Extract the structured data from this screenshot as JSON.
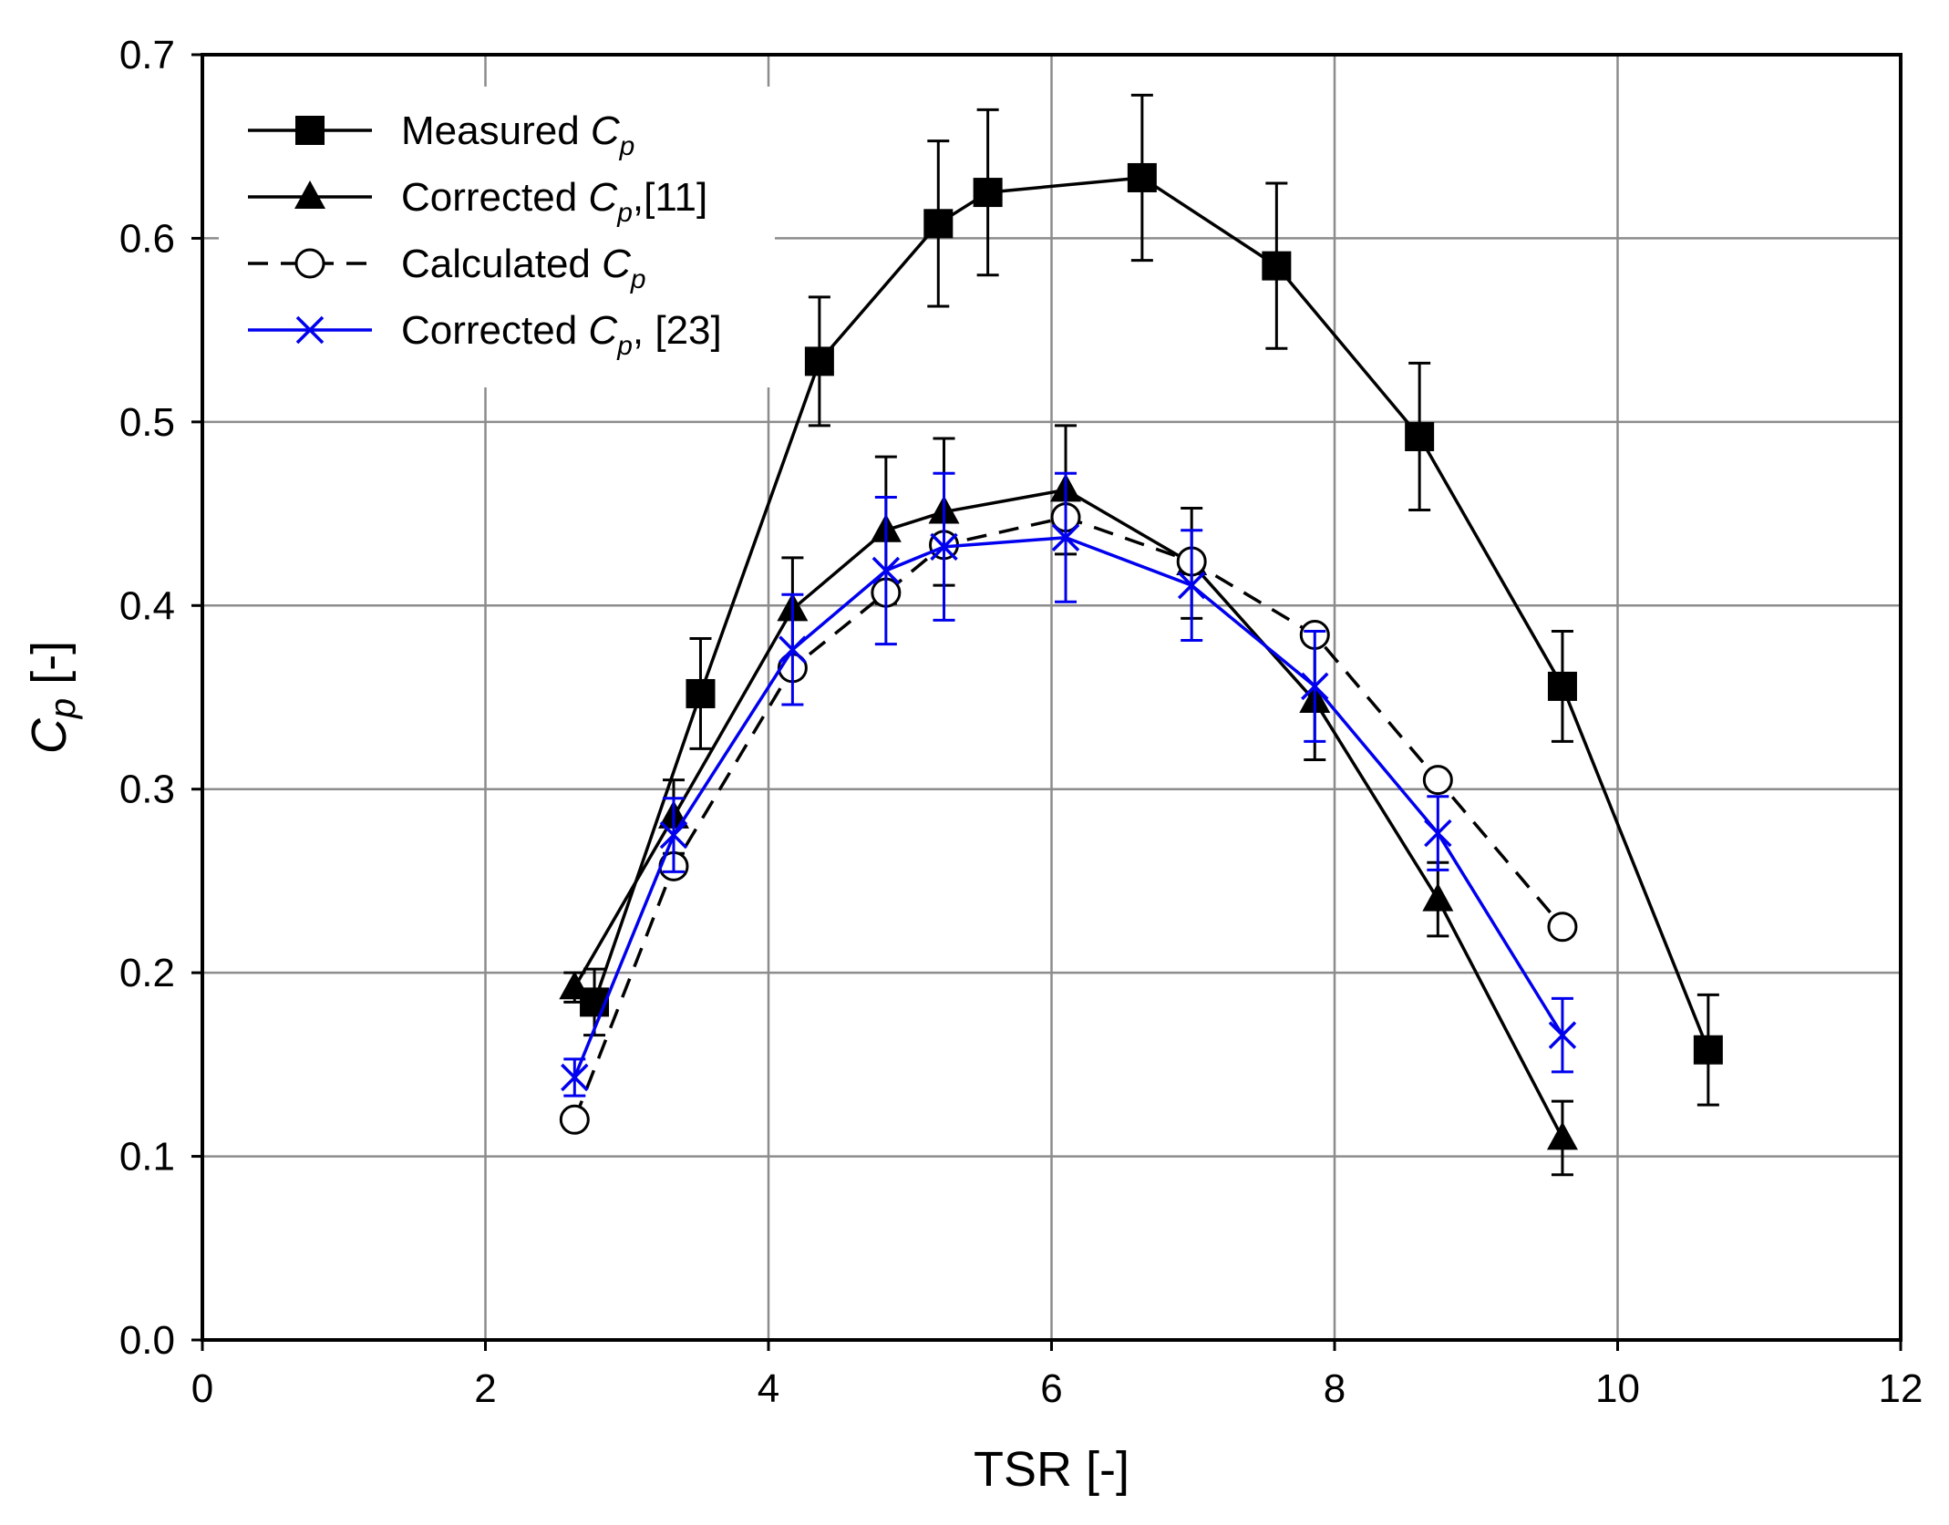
{
  "chart_data": {
    "type": "line",
    "title": "",
    "xlabel": "TSR [-]",
    "ylabel": "C",
    "ylabel_sub": "p",
    "ylabel_suffix": " [-]",
    "xlim": [
      0,
      12
    ],
    "ylim": [
      0,
      0.7
    ],
    "x_ticks": [
      0,
      2,
      4,
      6,
      8,
      10,
      12
    ],
    "x_tick_labels": [
      "0",
      "2",
      "4",
      "6",
      "8",
      "10",
      "12"
    ],
    "y_ticks": [
      0,
      0.1,
      0.2,
      0.3,
      0.4,
      0.5,
      0.6,
      0.7
    ],
    "y_tick_labels": [
      "0.0",
      "0.1",
      "0.2",
      "0.3",
      "0.4",
      "0.5",
      "0.6",
      "0.7"
    ],
    "grid": true,
    "legend_position": "top-left",
    "series": [
      {
        "name": "Measured Cp",
        "legend_prefix": "Measured C",
        "legend_sub": "p",
        "legend_suffix": "",
        "color": "#000000",
        "dash": "solid",
        "marker": "square",
        "x": [
          2.77,
          3.52,
          4.36,
          5.2,
          5.55,
          6.64,
          7.59,
          8.6,
          9.61,
          10.64
        ],
        "y": [
          0.184,
          0.352,
          0.533,
          0.608,
          0.625,
          0.633,
          0.585,
          0.492,
          0.356,
          0.158
        ],
        "err": [
          0.018,
          0.03,
          0.035,
          0.045,
          0.045,
          0.045,
          0.045,
          0.04,
          0.03,
          0.03
        ]
      },
      {
        "name": "Corrected Cp,[11]",
        "legend_prefix": "Corrected C",
        "legend_sub": "p",
        "legend_suffix": ",[11]",
        "color": "#000000",
        "dash": "solid",
        "marker": "triangle",
        "x": [
          2.63,
          3.33,
          4.17,
          4.83,
          5.24,
          6.1,
          6.99,
          7.86,
          8.73,
          9.61
        ],
        "y": [
          0.192,
          0.285,
          0.398,
          0.441,
          0.451,
          0.463,
          0.423,
          0.348,
          0.24,
          0.11
        ],
        "err": [
          0.008,
          0.02,
          0.028,
          0.04,
          0.04,
          0.035,
          0.03,
          0.032,
          0.02,
          0.02
        ]
      },
      {
        "name": "Calculated Cp",
        "legend_prefix": "Calculated C",
        "legend_sub": "p",
        "legend_suffix": "",
        "color": "#000000",
        "dash": "dashed",
        "marker": "circle",
        "x": [
          2.63,
          3.33,
          4.17,
          4.83,
          5.24,
          6.1,
          6.99,
          7.86,
          8.73,
          9.61
        ],
        "y": [
          0.12,
          0.258,
          0.366,
          0.407,
          0.433,
          0.448,
          0.424,
          0.384,
          0.305,
          0.225
        ],
        "err": []
      },
      {
        "name": "Corrected Cp, [23]",
        "legend_prefix": "Corrected C",
        "legend_sub": "p",
        "legend_suffix": ", [23]",
        "color": "#0000ee",
        "dash": "solid",
        "marker": "x",
        "x": [
          2.63,
          3.33,
          4.17,
          4.83,
          5.24,
          6.1,
          6.99,
          7.86,
          8.73,
          9.61
        ],
        "y": [
          0.143,
          0.275,
          0.376,
          0.419,
          0.432,
          0.437,
          0.411,
          0.356,
          0.276,
          0.166
        ],
        "err": [
          0.01,
          0.02,
          0.03,
          0.04,
          0.04,
          0.035,
          0.03,
          0.03,
          0.02,
          0.02
        ]
      }
    ]
  }
}
